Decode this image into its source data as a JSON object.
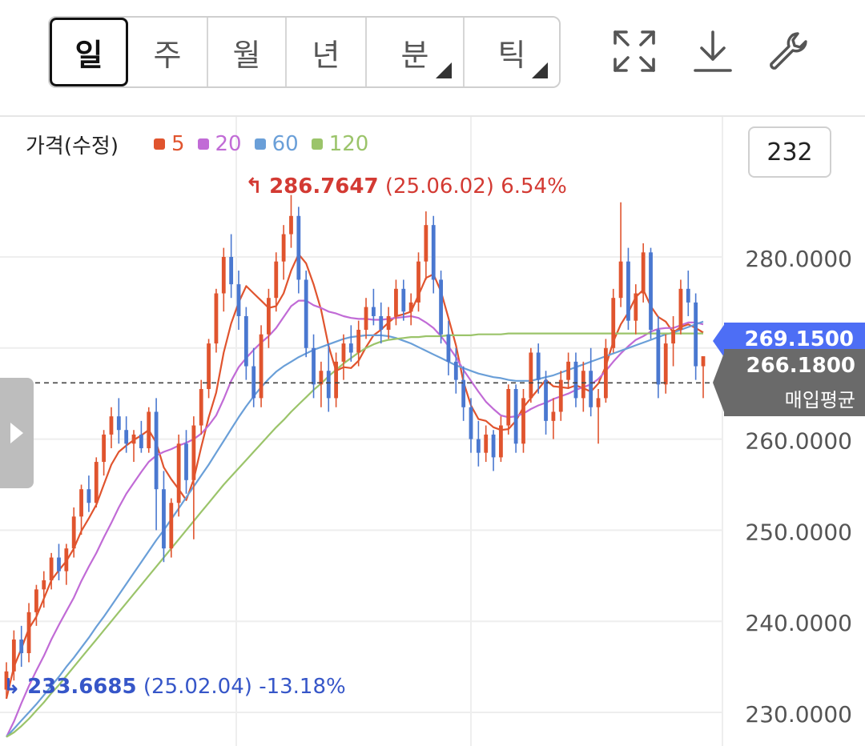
{
  "toolbar": {
    "periods": [
      {
        "label": "일",
        "active": true,
        "has_menu": false
      },
      {
        "label": "주",
        "active": false,
        "has_menu": false
      },
      {
        "label": "월",
        "active": false,
        "has_menu": false
      },
      {
        "label": "년",
        "active": false,
        "has_menu": false
      },
      {
        "label": "분",
        "active": false,
        "has_menu": true
      },
      {
        "label": "틱",
        "active": false,
        "has_menu": true
      }
    ],
    "icons": [
      "expand-icon",
      "download-icon",
      "wrench-icon"
    ]
  },
  "legend": {
    "title": "가격(수정)",
    "items": [
      {
        "label": "5",
        "color": "#e0542e"
      },
      {
        "label": "20",
        "color": "#c16bd6"
      },
      {
        "label": "60",
        "color": "#6a9fd8"
      },
      {
        "label": "120",
        "color": "#9bc46a"
      }
    ]
  },
  "scale_box": "232",
  "annotations": {
    "high": {
      "value": "286.7647",
      "date": "(25.06.02)",
      "pct": "6.54%"
    },
    "low": {
      "value": "233.6685",
      "date": "(25.02.04)",
      "pct": "-13.18%"
    }
  },
  "price_tags": {
    "last": "269.1500",
    "avg_value": "266.1800",
    "avg_label": "매입평균"
  },
  "chart_data": {
    "type": "candlestick",
    "ylim": [
      227.3,
      290.3
    ],
    "ticks": [
      {
        "value": 280,
        "label": "280.0000"
      },
      {
        "value": 260,
        "label": "260.0000"
      },
      {
        "value": 250,
        "label": "250.0000"
      },
      {
        "value": 240,
        "label": "240.0000"
      },
      {
        "value": 230,
        "label": "230.0000"
      }
    ],
    "buy_average": 266.18,
    "last_price": 269.15,
    "up_color": "#e0542e",
    "down_color": "#4a78d0",
    "ohlc": [
      [
        232.5,
        235.5,
        231.5,
        234.5
      ],
      [
        234.5,
        239.0,
        233.5,
        238.0
      ],
      [
        238.0,
        239.5,
        235.0,
        236.5
      ],
      [
        236.5,
        242.0,
        235.5,
        241.0
      ],
      [
        241.0,
        244.0,
        239.5,
        243.5
      ],
      [
        243.5,
        245.5,
        241.5,
        244.5
      ],
      [
        244.5,
        247.5,
        243.5,
        247.0
      ],
      [
        247.0,
        248.5,
        244.5,
        245.5
      ],
      [
        245.5,
        248.5,
        244.0,
        248.0
      ],
      [
        248.0,
        252.5,
        247.0,
        251.5
      ],
      [
        251.5,
        255.0,
        249.5,
        254.5
      ],
      [
        254.5,
        256.0,
        252.0,
        253.0
      ],
      [
        253.0,
        258.0,
        252.5,
        257.5
      ],
      [
        257.5,
        261.0,
        256.0,
        260.5
      ],
      [
        260.5,
        263.5,
        259.0,
        262.5
      ],
      [
        262.5,
        264.5,
        259.5,
        261.0
      ],
      [
        261.0,
        262.5,
        258.5,
        259.5
      ],
      [
        259.5,
        261.0,
        257.5,
        260.5
      ],
      [
        260.5,
        262.0,
        258.5,
        259.0
      ],
      [
        259.0,
        263.5,
        258.5,
        263.0
      ],
      [
        263.0,
        264.5,
        250.0,
        254.5
      ],
      [
        254.5,
        256.5,
        246.5,
        248.0
      ],
      [
        248.0,
        253.5,
        247.0,
        253.0
      ],
      [
        253.0,
        260.5,
        251.5,
        259.5
      ],
      [
        259.5,
        261.0,
        254.0,
        255.5
      ],
      [
        255.5,
        262.5,
        249.0,
        261.5
      ],
      [
        261.5,
        266.5,
        260.5,
        265.5
      ],
      [
        265.5,
        271.0,
        264.5,
        270.5
      ],
      [
        270.5,
        276.5,
        269.5,
        276.0
      ],
      [
        276.0,
        281.0,
        274.0,
        280.0
      ],
      [
        280.0,
        282.5,
        275.5,
        277.0
      ],
      [
        277.0,
        278.5,
        272.0,
        273.5
      ],
      [
        273.5,
        274.5,
        266.5,
        268.0
      ],
      [
        268.0,
        270.0,
        263.5,
        264.5
      ],
      [
        264.5,
        272.5,
        263.5,
        271.5
      ],
      [
        271.5,
        276.5,
        270.0,
        275.5
      ],
      [
        275.5,
        280.5,
        274.0,
        279.5
      ],
      [
        279.5,
        283.5,
        277.5,
        282.5
      ],
      [
        282.5,
        286.8,
        281.0,
        284.5
      ],
      [
        284.5,
        285.5,
        276.0,
        277.5
      ],
      [
        277.5,
        278.5,
        269.0,
        270.0
      ],
      [
        270.0,
        271.5,
        264.5,
        266.0
      ],
      [
        266.0,
        268.5,
        263.5,
        267.5
      ],
      [
        267.5,
        270.5,
        263.0,
        264.5
      ],
      [
        264.5,
        269.5,
        263.5,
        268.5
      ],
      [
        268.5,
        271.5,
        266.5,
        270.5
      ],
      [
        270.5,
        272.5,
        268.5,
        269.5
      ],
      [
        269.5,
        273.0,
        268.0,
        272.0
      ],
      [
        272.0,
        275.5,
        271.0,
        274.5
      ],
      [
        274.5,
        276.5,
        272.5,
        273.5
      ],
      [
        273.5,
        275.0,
        270.5,
        272.0
      ],
      [
        272.0,
        274.5,
        271.0,
        273.5
      ],
      [
        273.5,
        277.5,
        272.5,
        276.5
      ],
      [
        276.5,
        277.5,
        273.0,
        274.0
      ],
      [
        274.0,
        276.0,
        272.5,
        275.0
      ],
      [
        275.0,
        280.5,
        274.0,
        279.5
      ],
      [
        279.5,
        285.0,
        277.5,
        283.5
      ],
      [
        283.5,
        284.5,
        276.0,
        277.5
      ],
      [
        277.5,
        278.5,
        270.5,
        271.5
      ],
      [
        271.5,
        273.0,
        267.0,
        268.5
      ],
      [
        268.5,
        270.0,
        265.0,
        266.5
      ],
      [
        266.5,
        268.0,
        262.0,
        263.5
      ],
      [
        263.5,
        264.5,
        258.5,
        260.0
      ],
      [
        260.0,
        262.0,
        257.0,
        258.5
      ],
      [
        258.5,
        261.5,
        257.5,
        260.5
      ],
      [
        260.5,
        261.0,
        256.5,
        258.0
      ],
      [
        258.0,
        262.5,
        257.5,
        261.5
      ],
      [
        261.5,
        266.0,
        260.5,
        265.5
      ],
      [
        265.5,
        266.0,
        258.5,
        259.5
      ],
      [
        259.5,
        265.5,
        258.5,
        264.5
      ],
      [
        264.5,
        270.0,
        264.0,
        269.5
      ],
      [
        269.5,
        270.5,
        265.0,
        266.5
      ],
      [
        266.5,
        267.5,
        260.5,
        262.0
      ],
      [
        262.0,
        264.5,
        260.0,
        263.0
      ],
      [
        263.0,
        267.5,
        262.0,
        266.5
      ],
      [
        266.5,
        269.5,
        265.5,
        268.5
      ],
      [
        268.5,
        269.5,
        263.5,
        264.5
      ],
      [
        264.5,
        268.5,
        263.0,
        267.5
      ],
      [
        267.5,
        270.0,
        262.5,
        263.5
      ],
      [
        263.5,
        265.5,
        259.5,
        264.5
      ],
      [
        264.5,
        271.0,
        264.0,
        270.0
      ],
      [
        270.0,
        276.5,
        269.5,
        275.5
      ],
      [
        275.5,
        286.0,
        274.5,
        279.5
      ],
      [
        279.5,
        281.0,
        272.0,
        273.0
      ],
      [
        273.0,
        277.0,
        271.5,
        276.0
      ],
      [
        276.0,
        281.5,
        275.0,
        280.5
      ],
      [
        280.5,
        281.0,
        271.0,
        272.0
      ],
      [
        272.0,
        273.5,
        264.5,
        266.0
      ],
      [
        266.0,
        271.5,
        265.0,
        270.5
      ],
      [
        270.5,
        273.5,
        268.0,
        272.0
      ],
      [
        272.0,
        277.5,
        271.5,
        276.5
      ],
      [
        276.5,
        278.5,
        273.5,
        275.0
      ],
      [
        275.0,
        276.0,
        266.5,
        268.0
      ],
      [
        268.0,
        269.0,
        264.5,
        269.1
      ]
    ],
    "ma_series": [
      {
        "period": 5,
        "color": "#e0542e",
        "start": 0,
        "values": [
          231.5,
          235.0,
          237.0,
          239.2,
          240.5,
          242.5,
          244.5,
          245.6,
          246.6,
          248.0,
          249.9,
          251.3,
          252.8,
          255.0,
          257.2,
          258.6,
          259.3,
          259.9,
          260.4,
          261.0,
          259.6,
          256.9,
          255.6,
          254.5,
          253.3,
          255.6,
          259.1,
          262.4,
          265.1,
          269.5,
          272.7,
          275.0,
          276.8,
          276.0,
          275.2,
          274.4,
          274.6,
          276.0,
          278.5,
          280.3,
          279.3,
          277.0,
          274.2,
          270.2,
          267.5,
          267.9,
          267.8,
          268.6,
          270.1,
          271.4,
          272.0,
          272.8,
          273.5,
          273.7,
          274.0,
          275.8,
          277.7,
          278.1,
          276.2,
          273.3,
          270.3,
          266.3,
          263.7,
          262.2,
          262.0,
          261.3,
          261.0,
          261.1,
          262.0,
          263.5,
          264.5,
          265.5,
          266.5,
          265.8,
          265.7,
          265.6,
          265.9,
          265.6,
          265.2,
          266.1,
          268.0,
          270.7,
          272.6,
          273.9,
          275.6,
          276.4,
          274.6,
          273.4,
          272.9,
          271.7,
          272.3,
          272.6,
          272.2,
          271.7
        ]
      },
      {
        "period": 20,
        "color": "#c16bd6",
        "start": 0,
        "values": [
          227.3,
          229.0,
          231.0,
          232.9,
          234.6,
          236.2,
          238.0,
          239.6,
          241.1,
          242.6,
          244.4,
          246.0,
          247.5,
          249.2,
          250.8,
          252.5,
          254.0,
          255.2,
          256.4,
          257.5,
          258.2,
          258.6,
          258.9,
          259.3,
          259.6,
          260.0,
          260.6,
          261.5,
          262.6,
          264.4,
          266.4,
          267.9,
          268.9,
          269.8,
          270.6,
          271.3,
          272.2,
          273.4,
          274.6,
          275.2,
          275.2,
          274.7,
          274.4,
          274.0,
          273.8,
          273.5,
          273.3,
          273.2,
          273.2,
          273.1,
          273.1,
          273.2,
          273.3,
          273.4,
          273.5,
          273.3,
          272.8,
          272.2,
          271.3,
          270.2,
          269.0,
          267.6,
          266.4,
          265.2,
          264.1,
          263.3,
          262.6,
          262.4,
          262.5,
          262.8,
          263.3,
          263.7,
          264.0,
          264.4,
          264.7,
          265.0,
          265.4,
          265.7,
          266.0,
          266.6,
          267.5,
          268.5,
          269.4,
          270.2,
          270.9,
          271.3,
          271.8,
          272.1,
          272.2,
          272.2,
          272.5,
          272.8,
          272.8,
          272.6
        ]
      },
      {
        "period": 60,
        "color": "#6a9fd8",
        "start": 0,
        "values": [
          227.3,
          228.2,
          229.1,
          230.0,
          230.9,
          231.9,
          232.9,
          233.9,
          235.0,
          236.0,
          237.1,
          238.2,
          239.4,
          240.5,
          241.7,
          242.9,
          244.1,
          245.3,
          246.5,
          247.7,
          248.9,
          250.0,
          251.2,
          252.4,
          253.6,
          254.8,
          256.0,
          257.2,
          258.5,
          259.8,
          261.1,
          262.4,
          263.6,
          264.7,
          265.7,
          266.6,
          267.4,
          268.0,
          268.5,
          269.0,
          269.4,
          269.8,
          270.1,
          270.4,
          270.7,
          271.0,
          271.2,
          271.3,
          271.4,
          271.4,
          271.4,
          271.3,
          271.1,
          270.8,
          270.5,
          270.1,
          269.7,
          269.3,
          268.9,
          268.5,
          268.1,
          267.8,
          267.5,
          267.2,
          267.0,
          266.8,
          266.7,
          266.5,
          266.4,
          266.4,
          266.4,
          266.6,
          266.8,
          267.0,
          267.3,
          267.6,
          267.9,
          268.2,
          268.5,
          268.8,
          269.1,
          269.4,
          269.7,
          270.0,
          270.3,
          270.6,
          270.9,
          271.2,
          271.5,
          271.7,
          272.0,
          272.3,
          272.6,
          272.9
        ]
      },
      {
        "period": 120,
        "color": "#9bc46a",
        "start": 0,
        "values": [
          227.3,
          227.8,
          228.5,
          229.3,
          230.2,
          231.1,
          232.1,
          233.0,
          234.0,
          235.0,
          236.0,
          237.0,
          238.0,
          239.0,
          240.0,
          241.0,
          242.0,
          243.0,
          244.0,
          245.0,
          246.0,
          247.0,
          248.0,
          249.0,
          250.0,
          251.0,
          252.0,
          253.0,
          254.0,
          255.0,
          255.9,
          256.8,
          257.7,
          258.6,
          259.5,
          260.4,
          261.3,
          262.1,
          263.0,
          263.8,
          264.6,
          265.4,
          266.1,
          266.9,
          267.6,
          268.3,
          268.9,
          269.5,
          270.0,
          270.4,
          270.7,
          270.9,
          271.0,
          271.1,
          271.2,
          271.2,
          271.3,
          271.3,
          271.3,
          271.4,
          271.4,
          271.4,
          271.4,
          271.5,
          271.5,
          271.5,
          271.5,
          271.6,
          271.6,
          271.6,
          271.6,
          271.6,
          271.6,
          271.6,
          271.6,
          271.6,
          271.6,
          271.6,
          271.6,
          271.6,
          271.6,
          271.6,
          271.6,
          271.6,
          271.6,
          271.6,
          271.6,
          271.6,
          271.6,
          271.6,
          271.6,
          271.6,
          271.6,
          271.6
        ]
      }
    ]
  }
}
